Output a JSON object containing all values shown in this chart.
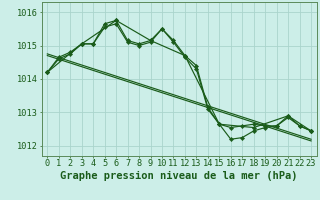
{
  "background_color": "#cceee8",
  "grid_color": "#aad4cc",
  "line_color": "#1a5c1a",
  "marker_color": "#1a5c1a",
  "xlabel": "Graphe pression niveau de la mer (hPa)",
  "xlabel_fontsize": 7.5,
  "tick_fontsize": 6.2,
  "ylim": [
    1011.7,
    1016.3
  ],
  "yticks": [
    1012,
    1013,
    1014,
    1015,
    1016
  ],
  "xlim": [
    -0.5,
    23.5
  ],
  "xticks": [
    0,
    1,
    2,
    3,
    4,
    5,
    6,
    7,
    8,
    9,
    10,
    11,
    12,
    13,
    14,
    15,
    16,
    17,
    18,
    19,
    20,
    21,
    22,
    23
  ],
  "series1_x": [
    0,
    1,
    2,
    3,
    4,
    5,
    6,
    7,
    8,
    9,
    10,
    11,
    12,
    13,
    14,
    15,
    16,
    17,
    18,
    19,
    20,
    21,
    22,
    23
  ],
  "series1": [
    1014.2,
    1014.6,
    1014.75,
    1015.05,
    1015.05,
    1015.55,
    1015.65,
    1015.1,
    1015.0,
    1015.1,
    1015.5,
    1015.1,
    1014.65,
    1014.3,
    1013.1,
    1012.65,
    1012.2,
    1012.25,
    1012.45,
    1012.55,
    1012.6,
    1012.85,
    1012.6,
    1012.45
  ],
  "series2_x": [
    0,
    1,
    2,
    3,
    4,
    5,
    6,
    7,
    8,
    9,
    10,
    11,
    12,
    13,
    14,
    15,
    16,
    17,
    18,
    19,
    20,
    21,
    22,
    23
  ],
  "series2": [
    1014.2,
    1014.65,
    1014.8,
    1015.05,
    1015.05,
    1015.65,
    1015.75,
    1015.15,
    1015.05,
    1015.15,
    1015.5,
    1015.15,
    1014.7,
    1014.4,
    1013.15,
    1012.65,
    1012.55,
    1012.6,
    1012.65,
    1012.6,
    1012.6,
    1012.9,
    1012.6,
    1012.45
  ],
  "trend1_x": [
    0,
    23
  ],
  "trend1": [
    1014.7,
    1012.15
  ],
  "trend2_x": [
    0,
    23
  ],
  "trend2": [
    1014.75,
    1012.2
  ],
  "series3_x": [
    0,
    3,
    6,
    9,
    12,
    15,
    18,
    21,
    23
  ],
  "series3": [
    1014.2,
    1015.05,
    1015.75,
    1015.15,
    1014.7,
    1012.65,
    1012.55,
    1012.9,
    1012.45
  ]
}
